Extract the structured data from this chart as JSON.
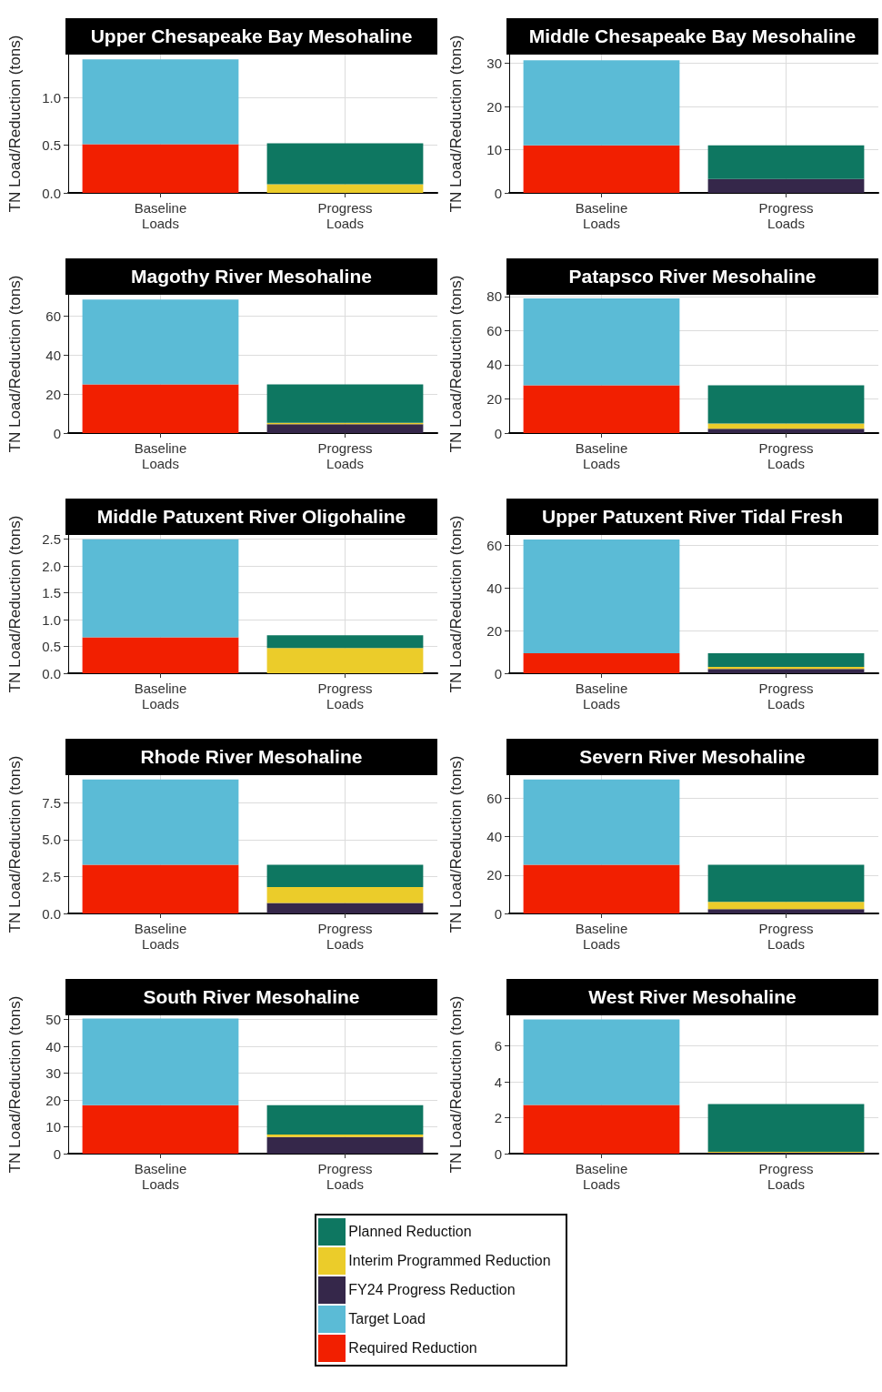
{
  "chart_data": [
    {
      "type": "bar",
      "title": "Upper Chesapeake Bay Mesohaline",
      "ylabel": "TN Load/Reduction (tons)",
      "categories": [
        "Baseline\nLoads",
        "Progress\nLoads"
      ],
      "stacked": true,
      "grid": true,
      "ylim": [
        0,
        1.45
      ],
      "yticks": [
        {
          "value": 0,
          "label": "0.0"
        },
        0.5,
        {
          "value": 1,
          "label": "1.0"
        }
      ],
      "series": [
        {
          "color": "#f21f00",
          "values": [
            0.51,
            null
          ]
        },
        {
          "color": "#5bbbd6",
          "values": [
            0.89,
            null
          ]
        },
        {
          "color": "#ebcc2a",
          "values": [
            null,
            0.09
          ]
        },
        {
          "color": "#0e7761",
          "values": [
            null,
            0.43
          ]
        }
      ]
    },
    {
      "type": "bar",
      "title": "Middle Chesapeake Bay Mesohaline",
      "ylabel": "TN Load/Reduction (tons)",
      "categories": [
        "Baseline\nLoads",
        "Progress\nLoads"
      ],
      "stacked": true,
      "grid": true,
      "ylim": [
        0,
        32
      ],
      "yticks": [
        0,
        10,
        20,
        30
      ],
      "series": [
        {
          "color": "#f21f00",
          "values": [
            11,
            null
          ]
        },
        {
          "color": "#5bbbd6",
          "values": [
            19.7,
            null
          ]
        },
        {
          "color": "#35274a",
          "values": [
            null,
            3.2
          ]
        },
        {
          "color": "#0e7761",
          "values": [
            null,
            7.8
          ]
        }
      ]
    },
    {
      "type": "bar",
      "title": "Magothy River Mesohaline",
      "ylabel": "TN Load/Reduction (tons)",
      "categories": [
        "Baseline\nLoads",
        "Progress\nLoads"
      ],
      "stacked": true,
      "grid": true,
      "ylim": [
        0,
        71
      ],
      "yticks": [
        0,
        20,
        40,
        60
      ],
      "series": [
        {
          "color": "#f21f00",
          "values": [
            25,
            null
          ]
        },
        {
          "color": "#5bbbd6",
          "values": [
            43.6,
            null
          ]
        },
        {
          "color": "#35274a",
          "values": [
            null,
            4.5
          ]
        },
        {
          "color": "#ebcc2a",
          "values": [
            null,
            0.8
          ]
        },
        {
          "color": "#0e7761",
          "values": [
            null,
            19.7
          ]
        }
      ]
    },
    {
      "type": "bar",
      "title": "Patapsco River Mesohaline",
      "ylabel": "TN Load/Reduction (tons)",
      "categories": [
        "Baseline\nLoads",
        "Progress\nLoads"
      ],
      "stacked": true,
      "grid": true,
      "ylim": [
        0,
        81
      ],
      "yticks": [
        0,
        20,
        40,
        60,
        80
      ],
      "series": [
        {
          "color": "#f21f00",
          "values": [
            28,
            null
          ]
        },
        {
          "color": "#5bbbd6",
          "values": [
            50.9,
            null
          ]
        },
        {
          "color": "#35274a",
          "values": [
            null,
            2.5
          ]
        },
        {
          "color": "#ebcc2a",
          "values": [
            null,
            3.1
          ]
        },
        {
          "color": "#0e7761",
          "values": [
            null,
            22.4
          ]
        }
      ]
    },
    {
      "type": "bar",
      "title": "Middle Patuxent River Oligohaline",
      "ylabel": "TN Load/Reduction (tons)",
      "categories": [
        "Baseline\nLoads",
        "Progress\nLoads"
      ],
      "stacked": true,
      "grid": true,
      "ylim": [
        0,
        2.58
      ],
      "yticks": [
        {
          "value": 0,
          "label": "0.0"
        },
        0.5,
        {
          "value": 1,
          "label": "1.0"
        },
        1.5,
        {
          "value": 2,
          "label": "2.0"
        },
        2.5
      ],
      "series": [
        {
          "color": "#f21f00",
          "values": [
            0.67,
            null
          ]
        },
        {
          "color": "#5bbbd6",
          "values": [
            1.83,
            null
          ]
        },
        {
          "color": "#ebcc2a",
          "values": [
            null,
            0.47
          ]
        },
        {
          "color": "#0e7761",
          "values": [
            null,
            0.24
          ]
        }
      ]
    },
    {
      "type": "bar",
      "title": "Upper Patuxent River Tidal Fresh",
      "ylabel": "TN Load/Reduction (tons)",
      "categories": [
        "Baseline\nLoads",
        "Progress\nLoads"
      ],
      "stacked": true,
      "grid": true,
      "ylim": [
        0,
        65
      ],
      "yticks": [
        0,
        20,
        40,
        60
      ],
      "series": [
        {
          "color": "#f21f00",
          "values": [
            9.4,
            null
          ]
        },
        {
          "color": "#5bbbd6",
          "values": [
            53.5,
            null
          ]
        },
        {
          "color": "#35274a",
          "values": [
            null,
            2
          ]
        },
        {
          "color": "#ebcc2a",
          "values": [
            null,
            1
          ]
        },
        {
          "color": "#0e7761",
          "values": [
            null,
            6.4
          ]
        }
      ]
    },
    {
      "type": "bar",
      "title": "Rhode River Mesohaline",
      "ylabel": "TN Load/Reduction (tons)",
      "categories": [
        "Baseline\nLoads",
        "Progress\nLoads"
      ],
      "stacked": true,
      "grid": true,
      "ylim": [
        0,
        9.36
      ],
      "yticks": [
        {
          "value": 0,
          "label": "0.0"
        },
        2.5,
        {
          "value": 5,
          "label": "5.0"
        },
        7.5
      ],
      "series": [
        {
          "color": "#f21f00",
          "values": [
            3.29,
            null
          ]
        },
        {
          "color": "#5bbbd6",
          "values": [
            5.78,
            null
          ]
        },
        {
          "color": "#35274a",
          "values": [
            null,
            0.71
          ]
        },
        {
          "color": "#ebcc2a",
          "values": [
            null,
            1.08
          ]
        },
        {
          "color": "#0e7761",
          "values": [
            null,
            1.5
          ]
        }
      ]
    },
    {
      "type": "bar",
      "title": "Severn River Mesohaline",
      "ylabel": "TN Load/Reduction (tons)",
      "categories": [
        "Baseline\nLoads",
        "Progress\nLoads"
      ],
      "stacked": true,
      "grid": true,
      "ylim": [
        0,
        72
      ],
      "yticks": [
        0,
        20,
        40,
        60
      ],
      "series": [
        {
          "color": "#f21f00",
          "values": [
            25.3,
            null
          ]
        },
        {
          "color": "#5bbbd6",
          "values": [
            44.5,
            null
          ]
        },
        {
          "color": "#35274a",
          "values": [
            null,
            2.2
          ]
        },
        {
          "color": "#ebcc2a",
          "values": [
            null,
            3.8
          ]
        },
        {
          "color": "#0e7761",
          "values": [
            null,
            19.3
          ]
        }
      ]
    },
    {
      "type": "bar",
      "title": "South River Mesohaline",
      "ylabel": "TN Load/Reduction (tons)",
      "categories": [
        "Baseline\nLoads",
        "Progress\nLoads"
      ],
      "stacked": true,
      "grid": true,
      "ylim": [
        0,
        51.6
      ],
      "yticks": [
        0,
        10,
        20,
        30,
        40,
        50
      ],
      "series": [
        {
          "color": "#f21f00",
          "values": [
            18.1,
            null
          ]
        },
        {
          "color": "#5bbbd6",
          "values": [
            32.3,
            null
          ]
        },
        {
          "color": "#35274a",
          "values": [
            null,
            6.2
          ]
        },
        {
          "color": "#ebcc2a",
          "values": [
            null,
            0.9
          ]
        },
        {
          "color": "#0e7761",
          "values": [
            null,
            11
          ]
        }
      ]
    },
    {
      "type": "bar",
      "title": "West River Mesohaline",
      "ylabel": "TN Load/Reduction (tons)",
      "categories": [
        "Baseline\nLoads",
        "Progress\nLoads"
      ],
      "stacked": true,
      "grid": true,
      "legend": "bottom",
      "ylim": [
        0,
        7.7
      ],
      "yticks": [
        0,
        2,
        4,
        6
      ],
      "series": [
        {
          "name": "Required Reduction",
          "color": "#f21f00",
          "values": [
            2.71,
            null
          ]
        },
        {
          "name": "Target Load",
          "color": "#5bbbd6",
          "values": [
            4.76,
            null
          ]
        },
        {
          "name": "FY24 Progress Reduction",
          "color": "#35274a",
          "values": [
            null,
            0.05
          ]
        },
        {
          "name": "Interim Programmed Reduction",
          "color": "#ebcc2a",
          "values": [
            null,
            0.05
          ]
        },
        {
          "name": "Planned Reduction",
          "color": "#0e7761",
          "values": [
            null,
            2.66
          ]
        }
      ]
    }
  ]
}
